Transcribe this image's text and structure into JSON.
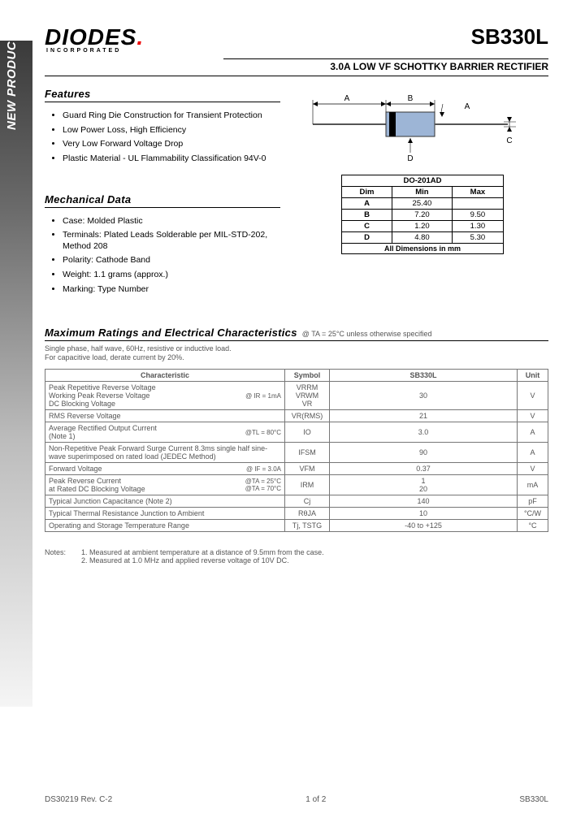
{
  "side_label": "NEW PRODUCT",
  "logo": {
    "main": "DIODES",
    "sub": "INCORPORATED"
  },
  "part_number": "SB330L",
  "subtitle": "3.0A LOW VF SCHOTTKY BARRIER RECTIFIER",
  "features": {
    "title": "Features",
    "items": [
      "Guard Ring Die Construction for Transient Protection",
      "Low Power Loss, High Efficiency",
      "Very Low Forward Voltage Drop",
      "Plastic Material - UL Flammability Classification 94V-0"
    ]
  },
  "mechanical": {
    "title": "Mechanical Data",
    "items": [
      "Case: Molded Plastic",
      "Terminals: Plated Leads Solderable per MIL-STD-202, Method 208",
      "Polarity: Cathode Band",
      "Weight: 1.1 grams (approx.)",
      "Marking: Type Number"
    ]
  },
  "package_diagram": {
    "dim_labels": {
      "A": "A",
      "B": "B",
      "C": "C",
      "D": "D"
    },
    "colors": {
      "body": "#9db5d6",
      "band": "#000",
      "lead": "#000",
      "arrow": "#000"
    }
  },
  "dim_table": {
    "title": "DO-201AD",
    "columns": [
      "Dim",
      "Min",
      "Max"
    ],
    "rows": [
      [
        "A",
        "25.40",
        ""
      ],
      [
        "B",
        "7.20",
        "9.50"
      ],
      [
        "C",
        "1.20",
        "1.30"
      ],
      [
        "D",
        "4.80",
        "5.30"
      ]
    ],
    "caption": "All Dimensions in mm"
  },
  "max_ratings": {
    "title": "Maximum Ratings and Electrical Characteristics",
    "at": "@ TA = 25°C unless otherwise specified",
    "preamble": "Single phase, half wave, 60Hz, resistive or inductive load.\nFor capacitive load, derate current by 20%.",
    "columns": [
      "Characteristic",
      "Symbol",
      "SB330L",
      "Unit"
    ],
    "rows": [
      {
        "char": "Peak Repetitive Reverse Voltage\nWorking Peak Reverse Voltage\nDC Blocking Voltage",
        "cond": "@ IR = 1mA",
        "symbol": "VRRM\nVRWM\nVR",
        "value": "30",
        "unit": "V"
      },
      {
        "char": "RMS Reverse Voltage",
        "cond": "",
        "symbol": "VR(RMS)",
        "value": "21",
        "unit": "V"
      },
      {
        "char": "Average Rectified Output Current\n(Note 1)",
        "cond": "@TL = 80°C",
        "symbol": "IO",
        "value": "3.0",
        "unit": "A"
      },
      {
        "char": "Non-Repetitive Peak Forward Surge Current 8.3ms single half sine-wave superimposed on rated load (JEDEC Method)",
        "cond": "",
        "symbol": "IFSM",
        "value": "90",
        "unit": "A"
      },
      {
        "char": "Forward Voltage",
        "cond": "@ IF = 3.0A",
        "symbol": "VFM",
        "value": "0.37",
        "unit": "V"
      },
      {
        "char": "Peak Reverse Current\nat Rated DC Blocking Voltage",
        "cond": "@TA = 25°C\n@TA = 70°C",
        "symbol": "IRM",
        "value": "1\n20",
        "unit": "mA"
      },
      {
        "char": "Typical Junction Capacitance (Note 2)",
        "cond": "",
        "symbol": "Cj",
        "value": "140",
        "unit": "pF"
      },
      {
        "char": "Typical Thermal Resistance Junction to Ambient",
        "cond": "",
        "symbol": "RθJA",
        "value": "10",
        "unit": "°C/W"
      },
      {
        "char": "Operating and Storage Temperature Range",
        "cond": "",
        "symbol": "Tj, TSTG",
        "value": "-40 to +125",
        "unit": "°C"
      }
    ]
  },
  "notes": {
    "label": "Notes:",
    "items": [
      "1. Measured at ambient temperature at a distance of 9.5mm from the case.",
      "2. Measured at 1.0 MHz and applied reverse voltage of 10V DC."
    ]
  },
  "footer": {
    "left": "DS30219 Rev. C-2",
    "center": "1 of 2",
    "right": "SB330L"
  }
}
